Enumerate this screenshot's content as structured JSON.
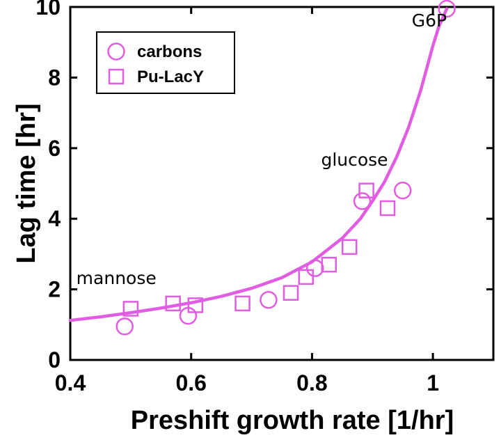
{
  "chart_data": {
    "type": "scatter",
    "xlabel": "Preshift growth rate [1/hr]",
    "ylabel": "Lag time [hr]",
    "xlim": [
      0.4,
      1.1
    ],
    "ylim": [
      0,
      10
    ],
    "xticks": [
      "0.4",
      "0.6",
      "0.8",
      "1"
    ],
    "yticks": [
      "0",
      "2",
      "4",
      "6",
      "8",
      "10"
    ],
    "grid": false,
    "legend_position": "top-left",
    "series": [
      {
        "name": "carbons",
        "marker": "circle",
        "color": "#e05ce0",
        "x": [
          0.49,
          0.595,
          0.728,
          0.805,
          0.883,
          0.95,
          1.023
        ],
        "y": [
          0.95,
          1.25,
          1.7,
          2.6,
          4.5,
          4.8,
          9.95
        ]
      },
      {
        "name": "Pu-LacY",
        "marker": "square",
        "color": "#e05ce0",
        "x": [
          0.5,
          0.57,
          0.607,
          0.685,
          0.765,
          0.79,
          0.828,
          0.862,
          0.89,
          0.925
        ],
        "y": [
          1.45,
          1.6,
          1.55,
          1.6,
          1.9,
          2.35,
          2.7,
          3.2,
          4.8,
          4.3
        ]
      },
      {
        "name": "",
        "kind": "fit-line",
        "color": "#e05ce0",
        "x": [
          0.4,
          0.45,
          0.5,
          0.55,
          0.6,
          0.65,
          0.7,
          0.75,
          0.8,
          0.85,
          0.88,
          0.9,
          0.92,
          0.94,
          0.96,
          0.98,
          1.0,
          1.01,
          1.023
        ],
        "y": [
          1.12,
          1.22,
          1.34,
          1.47,
          1.62,
          1.8,
          2.03,
          2.33,
          2.78,
          3.45,
          4.0,
          4.5,
          5.05,
          5.75,
          6.6,
          7.65,
          8.9,
          9.45,
          9.95
        ]
      }
    ],
    "annotations": [
      {
        "text": "G6P",
        "x": 0.965,
        "y": 9.45
      },
      {
        "text": "glucose",
        "x": 0.815,
        "y": 5.5
      },
      {
        "text": "mannose",
        "x": 0.41,
        "y": 2.15
      }
    ]
  }
}
